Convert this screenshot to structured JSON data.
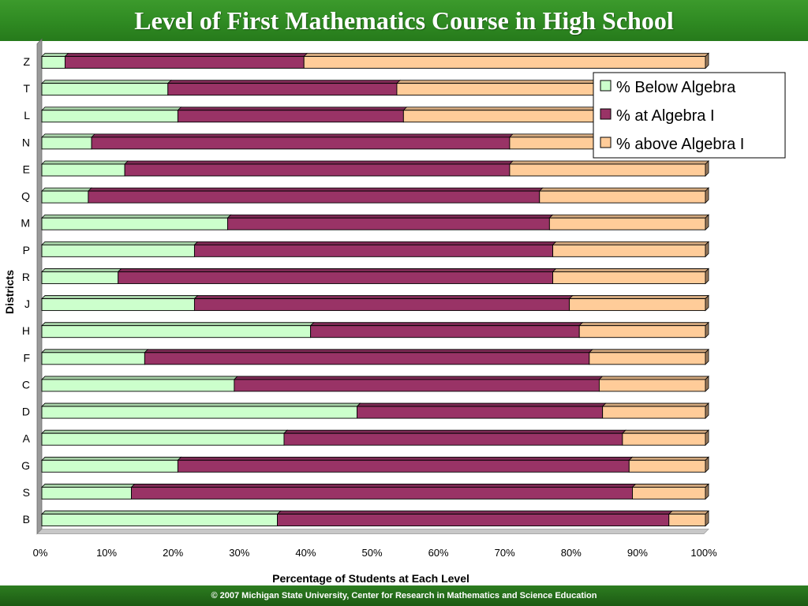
{
  "header": {
    "title": "Level of First Mathematics Course in High School"
  },
  "footer": {
    "text": "© 2007 Michigan State University,  Center for Research in Mathematics and Science Education"
  },
  "colors": {
    "below": "#ccffcc",
    "at": "#993366",
    "above": "#ffcc99",
    "title_bar": "#2f8a22",
    "footer_bar": "#1f6316",
    "wall": "#9a9a9a"
  },
  "chart_data": {
    "type": "bar",
    "orientation": "horizontal",
    "stacked": "percent",
    "xlabel": "Percentage of Students at Each Level",
    "ylabel": "Districts",
    "xlim": [
      0,
      100
    ],
    "xticks": [
      "0%",
      "10%",
      "20%",
      "30%",
      "40%",
      "50%",
      "60%",
      "70%",
      "80%",
      "90%",
      "100%"
    ],
    "legend_position": "top-right",
    "categories": [
      "Z",
      "T",
      "L",
      "N",
      "E",
      "Q",
      "M",
      "P",
      "R",
      "J",
      "H",
      "F",
      "C",
      "D",
      "A",
      "G",
      "S",
      "B"
    ],
    "series": [
      {
        "name": "%  Below Algebra",
        "key": "below",
        "values": [
          3.5,
          19.0,
          20.5,
          7.5,
          12.5,
          7.0,
          28.0,
          23.0,
          11.5,
          23.0,
          40.5,
          15.5,
          29.0,
          47.5,
          36.5,
          20.5,
          13.5,
          35.5
        ]
      },
      {
        "name": "%  at Algebra I",
        "key": "at",
        "values": [
          36.0,
          34.5,
          34.0,
          63.0,
          58.0,
          68.0,
          48.5,
          54.0,
          65.5,
          56.5,
          40.5,
          67.0,
          55.0,
          37.0,
          51.0,
          68.0,
          75.5,
          59.0
        ]
      },
      {
        "name": "%  above Algebra I",
        "key": "above",
        "values": [
          60.5,
          46.5,
          45.5,
          29.5,
          29.5,
          25.0,
          23.5,
          23.0,
          23.0,
          20.5,
          19.0,
          17.5,
          16.0,
          15.5,
          12.5,
          11.5,
          11.0,
          5.5
        ]
      }
    ]
  }
}
